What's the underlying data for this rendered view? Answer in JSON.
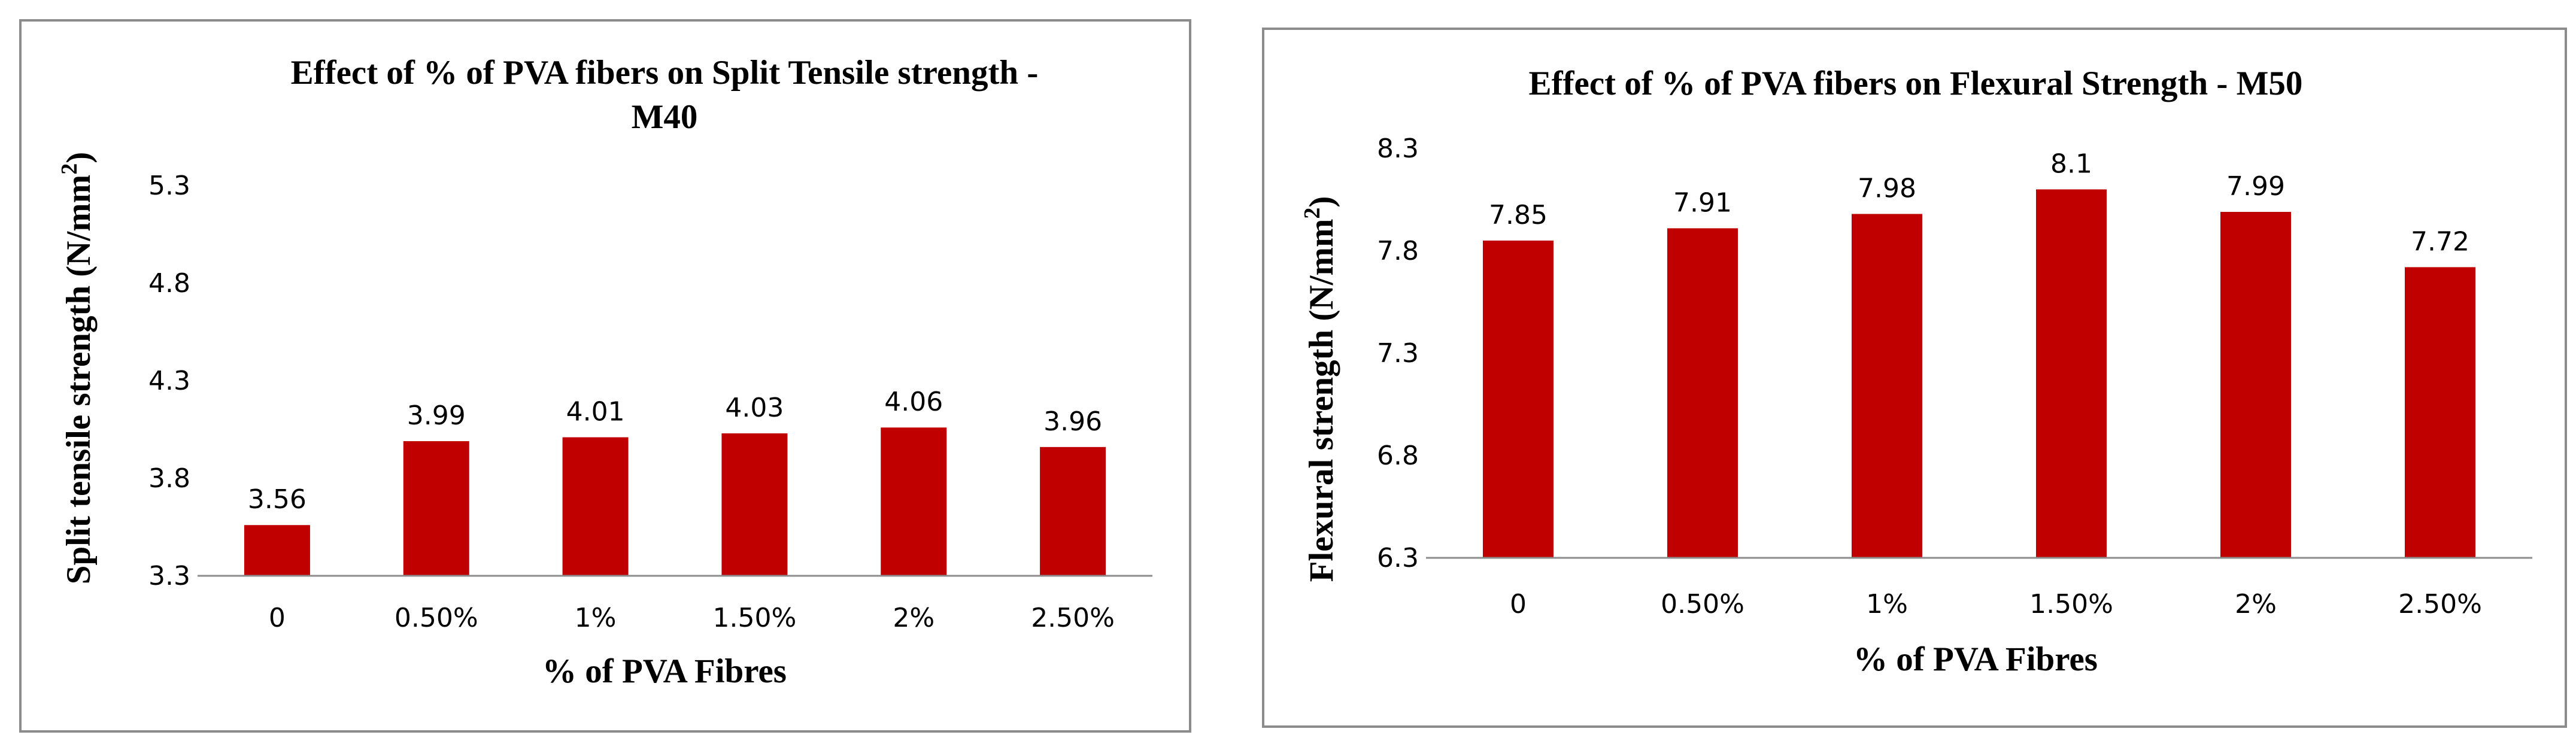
{
  "chart_data": [
    {
      "type": "bar",
      "title_lines": [
        "Effect of % of PVA fibers on Split Tensile strength -",
        "M40"
      ],
      "xlabel": "% of PVA Fibres",
      "ylabel": "Split tensile strength (N/mm",
      "ylabel_sup": "2",
      "ylabel_end": ")",
      "categories": [
        "0",
        "0.50%",
        "1%",
        "1.50%",
        "2%",
        "2.50%"
      ],
      "values": [
        3.56,
        3.99,
        4.01,
        4.03,
        4.06,
        3.96
      ],
      "value_labels": [
        "3.56",
        "3.99",
        "4.01",
        "4.03",
        "4.06",
        "3.96"
      ],
      "yticks": [
        "3.3",
        "3.8",
        "4.3",
        "4.8",
        "5.3"
      ],
      "ylim": [
        3.3,
        5.3
      ],
      "color": "#c00000",
      "grid": false
    },
    {
      "type": "bar",
      "title_lines": [
        "Effect of % of PVA fibers on Flexural Strength - M50"
      ],
      "xlabel": "% of PVA Fibres",
      "ylabel": "Flexural strength (N/mm",
      "ylabel_sup": "2",
      "ylabel_end": ")",
      "categories": [
        "0",
        "0.50%",
        "1%",
        "1.50%",
        "2%",
        "2.50%"
      ],
      "values": [
        7.85,
        7.91,
        7.98,
        8.1,
        7.99,
        7.72
      ],
      "value_labels": [
        "7.85",
        "7.91",
        "7.98",
        "8.1",
        "7.99",
        "7.72"
      ],
      "yticks": [
        "6.3",
        "6.8",
        "7.3",
        "7.8",
        "8.3"
      ],
      "ylim": [
        6.3,
        8.3
      ],
      "color": "#c00000",
      "grid": false
    }
  ]
}
